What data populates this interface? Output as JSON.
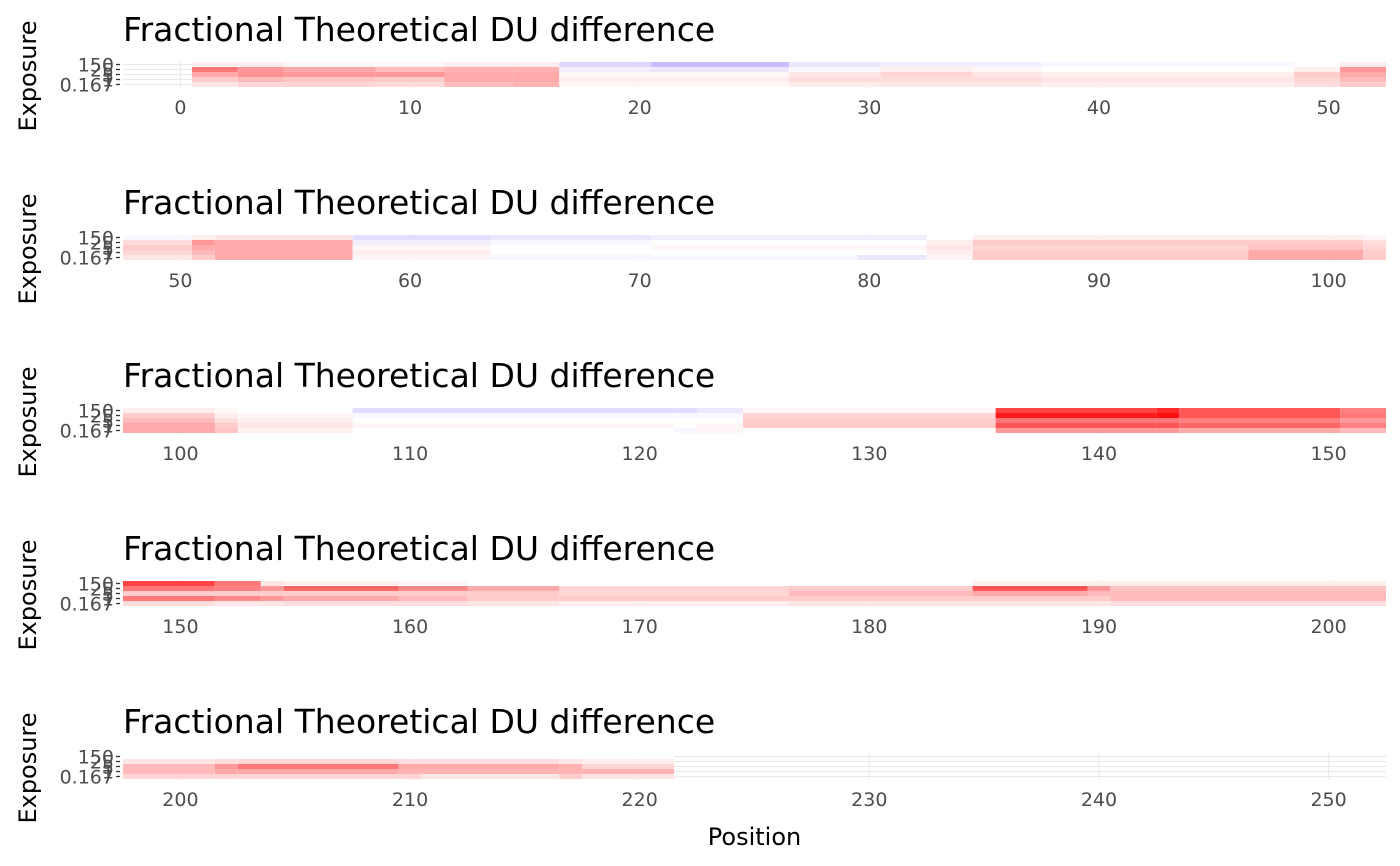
{
  "chart_data": {
    "type": "heatmap",
    "xlabel": "Position",
    "ylabel": "Exposure",
    "exposure_levels": [
      "0.167",
      "1",
      "5",
      "25",
      "150"
    ],
    "y_tick_labels": [
      "0.167",
      "1",
      "5",
      "25",
      "150"
    ],
    "color_scale": {
      "low": "#3f00ff",
      "mid": "#ffffff",
      "high": "#ff0000",
      "limit": 0.3
    },
    "panels": [
      {
        "title": "Fractional Theoretical DU difference",
        "xlim": [
          -2.5,
          52.5
        ],
        "x_ticks": [
          0,
          10,
          20,
          30,
          40,
          50
        ],
        "segments": [
          {
            "start": 1,
            "end": 2,
            "values": [
              0.03,
              0.06,
              0.1,
              0.16,
              0.02
            ]
          },
          {
            "start": 3,
            "end": 4,
            "values": [
              0.05,
              0.08,
              0.13,
              0.12,
              0.02
            ]
          },
          {
            "start": 5,
            "end": 8,
            "values": [
              0.05,
              0.07,
              0.12,
              0.1,
              0.01
            ]
          },
          {
            "start": 9,
            "end": 11,
            "values": [
              0.04,
              0.06,
              0.12,
              0.08,
              0.01
            ]
          },
          {
            "start": 12,
            "end": 14,
            "values": [
              0.08,
              0.1,
              0.1,
              0.09,
              0.02
            ]
          },
          {
            "start": 15,
            "end": 16,
            "values": [
              0.09,
              0.1,
              0.1,
              0.09,
              0.02
            ]
          },
          {
            "start": 17,
            "end": 20,
            "values": [
              0.01,
              0.02,
              0.01,
              -0.02,
              -0.05
            ]
          },
          {
            "start": 21,
            "end": 26,
            "values": [
              0.01,
              0.02,
              0.01,
              -0.03,
              -0.08
            ]
          },
          {
            "start": 27,
            "end": 30,
            "values": [
              0.02,
              0.04,
              0.03,
              -0.01,
              -0.03
            ]
          },
          {
            "start": 31,
            "end": 34,
            "values": [
              0.03,
              0.04,
              0.05,
              0.02,
              -0.02
            ]
          },
          {
            "start": 35,
            "end": 37,
            "values": [
              0.03,
              0.04,
              0.03,
              0.01,
              -0.02
            ]
          },
          {
            "start": 38,
            "end": 48,
            "values": [
              0.02,
              0.03,
              0.02,
              0.0,
              -0.01
            ]
          },
          {
            "start": 49,
            "end": 50,
            "values": [
              0.04,
              0.05,
              0.06,
              0.02,
              0.0
            ]
          },
          {
            "start": 51,
            "end": 52,
            "values": [
              0.06,
              0.08,
              0.1,
              0.12,
              0.02
            ]
          }
        ]
      },
      {
        "title": "Fractional Theoretical DU difference",
        "xlim": [
          47.5,
          102.5
        ],
        "x_ticks": [
          50,
          60,
          70,
          80,
          90,
          100
        ],
        "segments": [
          {
            "start": 48,
            "end": 50,
            "values": [
              0.03,
              0.05,
              0.06,
              0.04,
              -0.01
            ]
          },
          {
            "start": 51,
            "end": 51,
            "values": [
              0.06,
              0.08,
              0.1,
              0.12,
              0.02
            ]
          },
          {
            "start": 52,
            "end": 57,
            "values": [
              0.1,
              0.1,
              0.1,
              0.1,
              0.03
            ]
          },
          {
            "start": 58,
            "end": 63,
            "values": [
              0.01,
              0.02,
              0.01,
              -0.02,
              -0.04
            ]
          },
          {
            "start": 64,
            "end": 70,
            "values": [
              -0.01,
              0.0,
              0.0,
              -0.01,
              -0.03
            ]
          },
          {
            "start": 71,
            "end": 79,
            "values": [
              -0.01,
              0.0,
              0.01,
              0.0,
              -0.02
            ]
          },
          {
            "start": 80,
            "end": 82,
            "values": [
              -0.03,
              0.0,
              0.01,
              0.0,
              -0.02
            ]
          },
          {
            "start": 83,
            "end": 84,
            "values": [
              0.01,
              0.02,
              0.03,
              0.02,
              0.0
            ]
          },
          {
            "start": 85,
            "end": 96,
            "values": [
              0.06,
              0.06,
              0.05,
              0.06,
              0.02
            ]
          },
          {
            "start": 97,
            "end": 101,
            "values": [
              0.1,
              0.1,
              0.07,
              0.06,
              0.02
            ]
          },
          {
            "start": 102,
            "end": 102,
            "values": [
              0.06,
              0.06,
              0.05,
              0.04,
              0.01
            ]
          }
        ]
      },
      {
        "title": "Fractional Theoretical DU difference",
        "xlim": [
          97.5,
          152.5
        ],
        "x_ticks": [
          100,
          110,
          120,
          130,
          140,
          150
        ],
        "segments": [
          {
            "start": 98,
            "end": 101,
            "values": [
              0.1,
              0.1,
              0.08,
              0.06,
              0.02
            ]
          },
          {
            "start": 102,
            "end": 102,
            "values": [
              0.07,
              0.06,
              0.04,
              0.02,
              0.01
            ]
          },
          {
            "start": 103,
            "end": 107,
            "values": [
              0.02,
              0.03,
              0.02,
              0.01,
              0.0
            ]
          },
          {
            "start": 108,
            "end": 121,
            "values": [
              0.0,
              0.01,
              0.0,
              -0.01,
              -0.04
            ]
          },
          {
            "start": 122,
            "end": 122,
            "values": [
              -0.01,
              0.0,
              0.0,
              -0.01,
              -0.04
            ]
          },
          {
            "start": 123,
            "end": 124,
            "values": [
              0.01,
              0.01,
              0.0,
              -0.01,
              -0.03
            ]
          },
          {
            "start": 125,
            "end": 135,
            "values": [
              0.0,
              0.06,
              0.06,
              0.05,
              0.01
            ]
          },
          {
            "start": 136,
            "end": 142,
            "values": [
              0.12,
              0.2,
              0.16,
              0.27,
              0.22
            ]
          },
          {
            "start": 143,
            "end": 143,
            "values": [
              0.12,
              0.2,
              0.16,
              0.28,
              0.25
            ]
          },
          {
            "start": 144,
            "end": 150,
            "values": [
              0.1,
              0.18,
              0.15,
              0.2,
              0.2
            ]
          },
          {
            "start": 151,
            "end": 152,
            "values": [
              0.08,
              0.15,
              0.12,
              0.16,
              0.15
            ]
          }
        ]
      },
      {
        "title": "Fractional Theoretical DU difference",
        "xlim": [
          147.5,
          202.5
        ],
        "x_ticks": [
          150,
          160,
          170,
          180,
          190,
          200
        ],
        "segments": [
          {
            "start": 148,
            "end": 151,
            "values": [
              0.04,
              0.16,
              0.06,
              0.16,
              0.22
            ]
          },
          {
            "start": 152,
            "end": 153,
            "values": [
              0.03,
              0.14,
              0.06,
              0.15,
              0.16
            ]
          },
          {
            "start": 154,
            "end": 154,
            "values": [
              0.03,
              0.12,
              0.06,
              0.12,
              0.03
            ]
          },
          {
            "start": 155,
            "end": 159,
            "values": [
              0.04,
              0.1,
              0.06,
              0.18,
              0.02
            ]
          },
          {
            "start": 160,
            "end": 162,
            "values": [
              0.04,
              0.08,
              0.06,
              0.14,
              0.01
            ]
          },
          {
            "start": 163,
            "end": 166,
            "values": [
              0.03,
              0.06,
              0.06,
              0.1,
              0.0
            ]
          },
          {
            "start": 167,
            "end": 176,
            "values": [
              0.02,
              0.06,
              0.05,
              0.05,
              0.0
            ]
          },
          {
            "start": 177,
            "end": 184,
            "values": [
              0.03,
              0.06,
              0.08,
              0.06,
              0.0
            ]
          },
          {
            "start": 185,
            "end": 189,
            "values": [
              0.03,
              0.06,
              0.1,
              0.2,
              0.02
            ]
          },
          {
            "start": 190,
            "end": 190,
            "values": [
              0.03,
              0.06,
              0.08,
              0.12,
              0.02
            ]
          },
          {
            "start": 191,
            "end": 202,
            "values": [
              0.04,
              0.08,
              0.08,
              0.07,
              0.02
            ]
          }
        ]
      },
      {
        "title": "Fractional Theoretical DU difference",
        "xlim": [
          197.5,
          252.5
        ],
        "x_ticks": [
          200,
          210,
          220,
          230,
          240,
          250
        ],
        "segments": [
          {
            "start": 198,
            "end": 201,
            "values": [
              0.05,
              0.08,
              0.08,
              0.03,
              0.0
            ]
          },
          {
            "start": 202,
            "end": 202,
            "values": [
              0.05,
              0.1,
              0.12,
              0.04,
              0.0
            ]
          },
          {
            "start": 203,
            "end": 209,
            "values": [
              0.05,
              0.1,
              0.16,
              0.05,
              0.0
            ]
          },
          {
            "start": 210,
            "end": 210,
            "values": [
              0.05,
              0.09,
              0.1,
              0.04,
              0.0
            ]
          },
          {
            "start": 211,
            "end": 216,
            "values": [
              0.03,
              0.09,
              0.1,
              0.04,
              0.0
            ]
          },
          {
            "start": 217,
            "end": 217,
            "values": [
              0.06,
              0.09,
              0.09,
              0.03,
              0.0
            ]
          },
          {
            "start": 218,
            "end": 221,
            "values": [
              0.03,
              0.09,
              0.05,
              0.02,
              0.0
            ]
          }
        ]
      }
    ]
  }
}
